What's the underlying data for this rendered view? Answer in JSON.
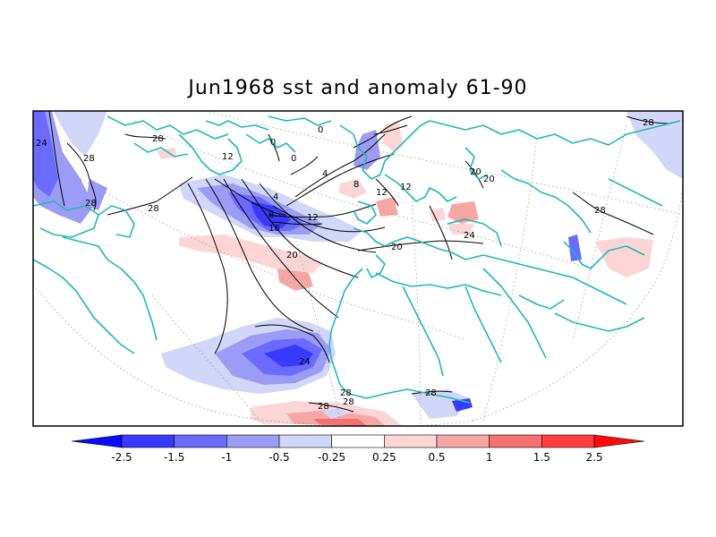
{
  "title": "Jun1968 sst and anomaly 61-90",
  "colors": {
    "land": "#ffffff",
    "coastline": "#21b8b8",
    "contour": "#000000",
    "frame": "#000000"
  },
  "contour_labels": [
    "24",
    "28",
    "28",
    "28",
    "12",
    "0",
    "0",
    "0",
    "4",
    "8",
    "16",
    "8",
    "12",
    "4",
    "12",
    "12",
    "20",
    "20",
    "24",
    "28",
    "28",
    "28",
    "28",
    "20",
    "20",
    "28",
    "24",
    "28",
    "28"
  ],
  "colorbar": {
    "ticks": [
      "-2.5",
      "-1.5",
      "-1",
      "-0.5",
      "-0.25",
      "0.25",
      "0.5",
      "1",
      "1.5",
      "2.5"
    ],
    "colors": [
      "#0a0aff",
      "#3a3aff",
      "#6b6bff",
      "#9c9cf6",
      "#d2d6f8",
      "#ffffff",
      "#fcd6d6",
      "#f7a6a6",
      "#f57070",
      "#ff3e3e",
      "#ff0a0a"
    ]
  }
}
